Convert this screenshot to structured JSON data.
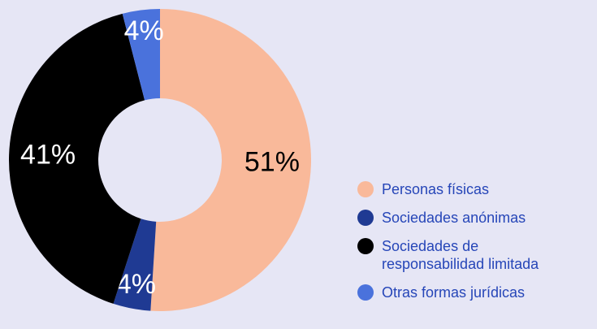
{
  "chart_data": {
    "type": "pie",
    "categories": [
      "Personas físicas",
      "Sociedades anónimas",
      "Sociedades de responsabilidad limitada",
      "Otras formas jurídicas"
    ],
    "values": [
      51,
      4,
      41,
      4
    ],
    "value_labels": [
      "51%",
      "4%",
      "41%",
      "4%"
    ],
    "colors": [
      "#f9b99a",
      "#1f3a93",
      "#000000",
      "#4a72dc"
    ],
    "donut": true,
    "legend": "bottom-right"
  }
}
